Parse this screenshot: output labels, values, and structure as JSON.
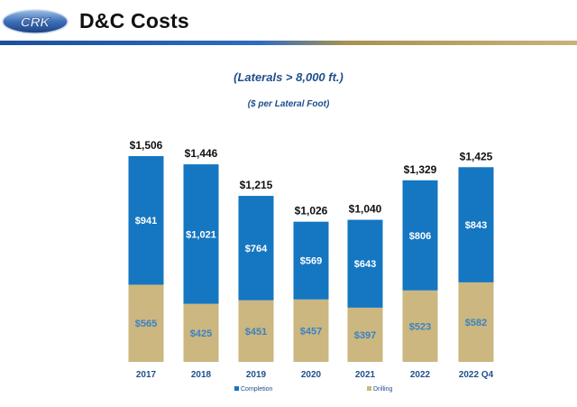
{
  "header": {
    "logo_text": "CRK",
    "title": "D&C Costs"
  },
  "chart_data": {
    "type": "bar",
    "stacked": true,
    "title": "(Laterals > 8,000 ft.)",
    "subtitle": "($ per Lateral Foot)",
    "categories": [
      "2017",
      "2018",
      "2019",
      "2020",
      "2021",
      "2022",
      "2022 Q4"
    ],
    "series": [
      {
        "name": "Drilling",
        "values": [
          565,
          425,
          451,
          457,
          397,
          523,
          582
        ],
        "labels": [
          "$565",
          "$425",
          "$451",
          "$457",
          "$397",
          "$523",
          "$582"
        ],
        "color": "#cbb77f"
      },
      {
        "name": "Completion",
        "values": [
          941,
          1021,
          764,
          569,
          643,
          806,
          843
        ],
        "labels": [
          "$941",
          "$1,021",
          "$764",
          "$569",
          "$643",
          "$806",
          "$843"
        ],
        "color": "#1576c1"
      }
    ],
    "totals": [
      1506,
      1446,
      1215,
      1026,
      1040,
      1329,
      1425
    ],
    "total_labels": [
      "$1,506",
      "$1,446",
      "$1,215",
      "$1,026",
      "$1,040",
      "$1,329",
      "$1,425"
    ],
    "legend": {
      "position": "bottom",
      "entries": [
        "Completion",
        "Drilling"
      ]
    },
    "grid": false
  }
}
